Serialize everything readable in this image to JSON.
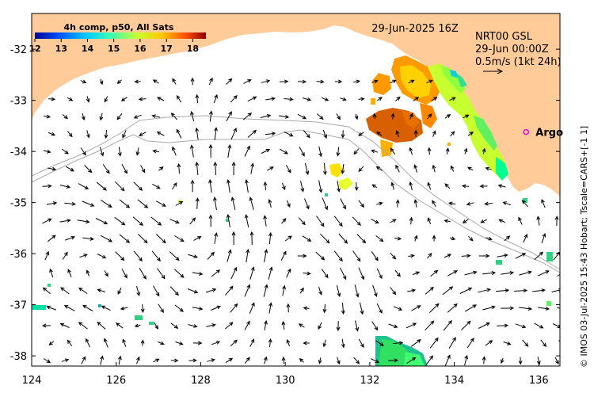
{
  "header": {
    "composite_label": "4h comp, p50, All Sats",
    "date_label": "29-Jun-2025 16Z",
    "velocity_source": "NRT00 GSL",
    "velocity_time": "29-Jun 00:00Z",
    "velocity_scale": "0.5m/s (1kt 24h)"
  },
  "colorbar": {
    "ticks": [
      "12",
      "13",
      "14",
      "15",
      "16",
      "17",
      "18"
    ],
    "min": 12,
    "max": 18.5,
    "colors": [
      "#00008f",
      "#0050ff",
      "#00c8ff",
      "#40ffb0",
      "#c8ff30",
      "#ffc800",
      "#ff5000",
      "#900000"
    ]
  },
  "axes": {
    "x_ticks": [
      "124",
      "126",
      "128",
      "130",
      "132",
      "134",
      "136"
    ],
    "y_ticks": [
      "-32",
      "-33",
      "-34",
      "-35",
      "-36",
      "-37",
      "-38"
    ],
    "lon_range": [
      124,
      136.5
    ],
    "lat_range": [
      -31.3,
      -38.2
    ]
  },
  "markers": [
    {
      "label": "Argo",
      "lon": 135.7,
      "lat": -33.62,
      "color": "#e000e0"
    }
  ],
  "credit": "© IMOS 03-Jul-2025 15:43 Hobart; Tscale=CARS+[-1 1]",
  "colors": {
    "land": "#ffcc99",
    "ocean": "#ffffff",
    "contour": "#aaaaaa"
  }
}
